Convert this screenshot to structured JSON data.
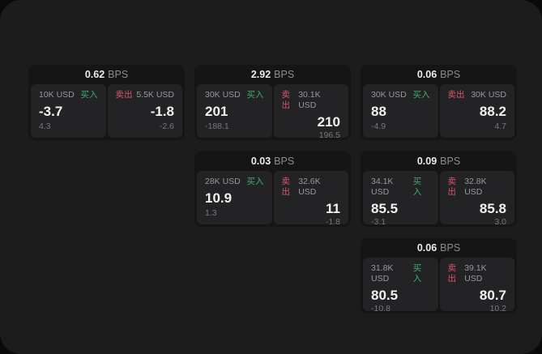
{
  "labels": {
    "bps_unit": "BPS",
    "buy": "买入",
    "sell": "卖出"
  },
  "colors": {
    "background": "#0a0a0a",
    "surface": "#1c1c1d",
    "card": "#151516",
    "panel": "#232325",
    "text_primary": "#f1f1f2",
    "text_secondary": "#98989b",
    "text_muted": "#78787c",
    "buy_green": "#3fae6e",
    "sell_red": "#d8566a"
  },
  "cards": [
    {
      "bps": "0.62",
      "buy": {
        "size": "10K USD",
        "value": "-3.7",
        "secondary": "4.3"
      },
      "sell": {
        "size": "5.5K USD",
        "value": "-1.8",
        "secondary": "-2.6"
      }
    },
    {
      "bps": "2.92",
      "buy": {
        "size": "30K USD",
        "value": "201",
        "secondary": "-188.1"
      },
      "sell": {
        "size": "30.1K USD",
        "value": "210",
        "secondary": "196.5"
      }
    },
    {
      "bps": "0.06",
      "buy": {
        "size": "30K USD",
        "value": "88",
        "secondary": "-4.9"
      },
      "sell": {
        "size": "30K USD",
        "value": "88.2",
        "secondary": "4.7"
      }
    },
    {
      "bps": "0.03",
      "buy": {
        "size": "28K USD",
        "value": "10.9",
        "secondary": "1.3"
      },
      "sell": {
        "size": "32.6K USD",
        "value": "11",
        "secondary": "-1.8"
      }
    },
    {
      "bps": "0.09",
      "buy": {
        "size": "34.1K USD",
        "value": "85.5",
        "secondary": "-3.1"
      },
      "sell": {
        "size": "32.8K USD",
        "value": "85.8",
        "secondary": "3.0"
      }
    },
    {
      "bps": "0.06",
      "buy": {
        "size": "31.8K USD",
        "value": "80.5",
        "secondary": "-10.8"
      },
      "sell": {
        "size": "39.1K USD",
        "value": "80.7",
        "secondary": "10.2"
      }
    }
  ]
}
